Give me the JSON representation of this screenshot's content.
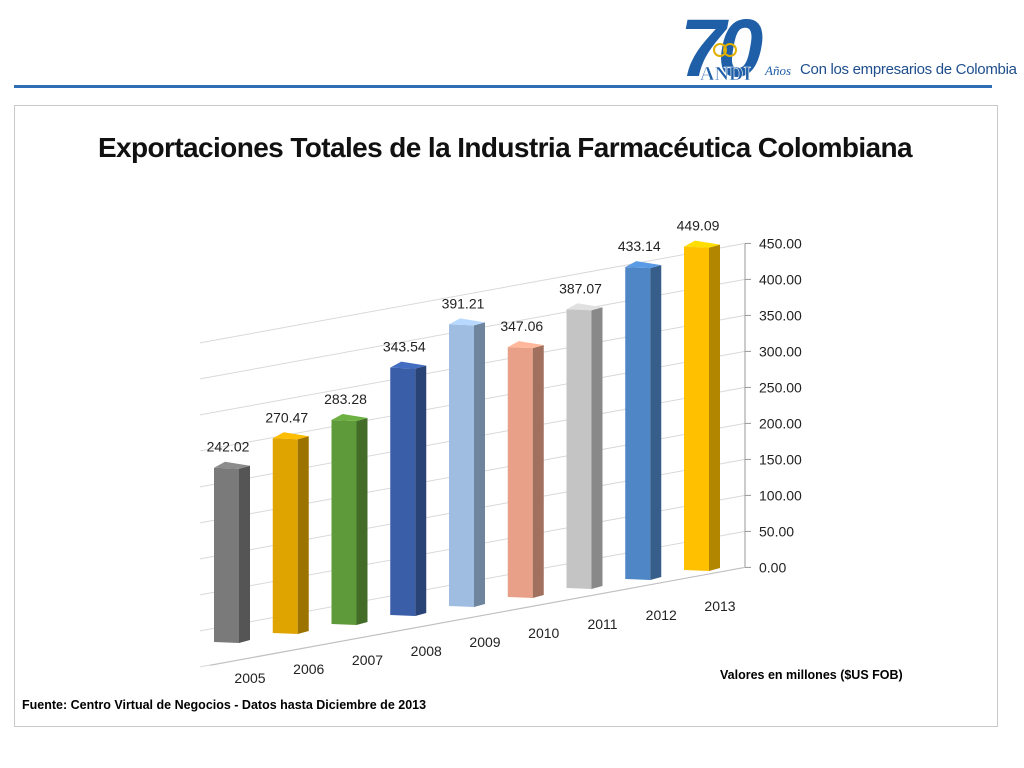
{
  "header": {
    "logo_number": "70",
    "logo_brand": "ANDI",
    "anos": "Años",
    "tagline": "Con los empresarios de Colombia"
  },
  "notes": {
    "units": "Valores en millones  ($US FOB)",
    "source": "Fuente:  Centro Virtual de Negocios  - Datos hasta  Diciembre de 2013"
  },
  "colors": {
    "brand_blue": "#1f5fa8",
    "rule_blue": "#2f6fb5"
  },
  "chart_data": {
    "type": "bar",
    "title": "Exportaciones Totales de la Industria Farmacéutica Colombiana",
    "xlabel": "",
    "ylabel": "",
    "categories": [
      "2005",
      "2006",
      "2007",
      "2008",
      "2009",
      "2010",
      "2011",
      "2012",
      "2013"
    ],
    "values": [
      242.02,
      270.47,
      283.28,
      343.54,
      391.21,
      347.06,
      387.07,
      433.14,
      449.09
    ],
    "data_labels": [
      "242.02",
      "270.47",
      "283.28",
      "343.54",
      "391.21",
      "347.06",
      "387.07",
      "433.14",
      "449.09"
    ],
    "bar_colors": [
      "#7a7a7a",
      "#e0a400",
      "#5f9a3a",
      "#3a5fa8",
      "#9fbde0",
      "#e8a088",
      "#c4c4c4",
      "#4f86c6",
      "#ffc000"
    ],
    "ylim": [
      0,
      450
    ],
    "yticks": [
      "0.00",
      "50.00",
      "100.00",
      "150.00",
      "200.00",
      "250.00",
      "300.00",
      "350.00",
      "400.00",
      "450.00"
    ],
    "grid": true,
    "legend": "none",
    "style": "3d-perspective"
  }
}
